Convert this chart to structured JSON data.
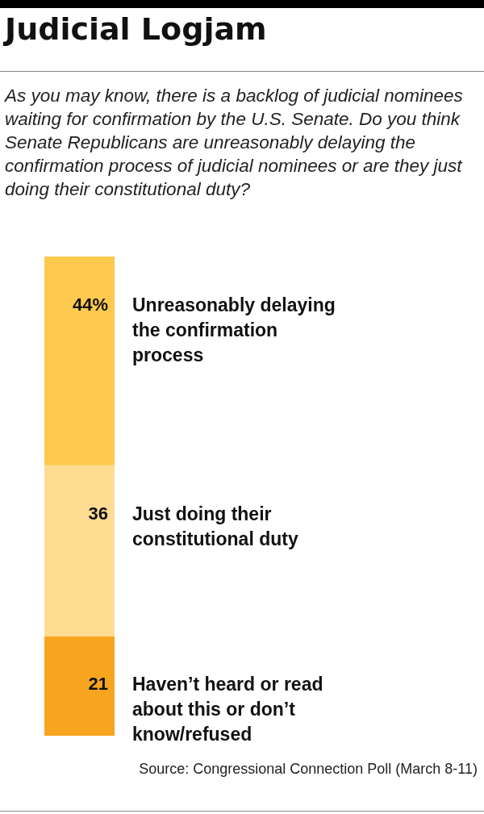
{
  "chart_data": {
    "type": "bar",
    "stacked": true,
    "title": "Judicial Logjam",
    "subtitle": "As you may know, there is a backlog of judicial nominees waiting for confirmation by the U.S. Senate. Do you think Senate Republicans are unreasonably delaying the confirmation process of judicial nominees or are they just doing their constitutional duty?",
    "categories": [
      null
    ],
    "series": [
      {
        "name": "Haven’t heard or read about this or don’t know/refused",
        "color": "#f7a51f",
        "values": [
          21
        ],
        "value_labels": [
          "21"
        ]
      },
      {
        "name": "Just doing their constitutional duty",
        "color": "#fedc91",
        "values": [
          36
        ],
        "value_labels": [
          "36"
        ]
      },
      {
        "name": "Unreasonably delaying the confirmation process",
        "color": "#fec94f",
        "values": [
          44
        ],
        "value_labels": [
          "44%"
        ]
      }
    ],
    "annotations": [
      "Source: Congressional Connection Poll (March 8-11)"
    ]
  }
}
